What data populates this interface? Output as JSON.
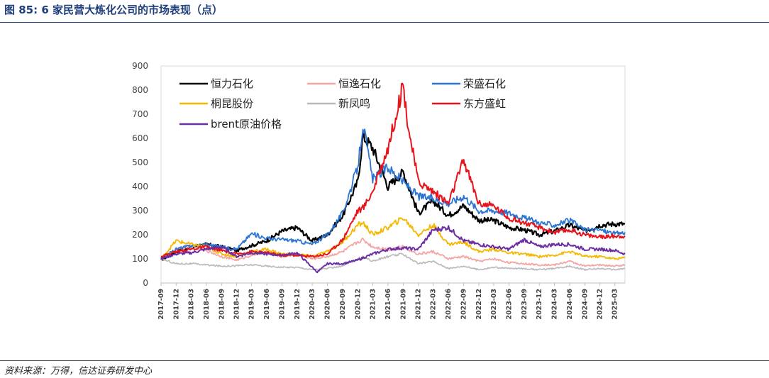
{
  "figure": {
    "title": "图 85:  6 家民营大炼化公司的市场表现（点）",
    "source": "资料来源：万得，信达证券研发中心"
  },
  "chart_data": {
    "type": "line",
    "ylim": [
      0,
      900
    ],
    "yticks": [
      0,
      100,
      200,
      300,
      400,
      500,
      600,
      700,
      800,
      900
    ],
    "xticks": [
      "2017-09",
      "2017-12",
      "2018-03",
      "2018-06",
      "2018-09",
      "2018-12",
      "2019-03",
      "2019-06",
      "2019-09",
      "2019-12",
      "2020-03",
      "2020-06",
      "2020-09",
      "2020-12",
      "2021-03",
      "2021-06",
      "2021-09",
      "2021-12",
      "2022-03",
      "2022-06",
      "2022-09",
      "2022-12",
      "2023-03",
      "2023-06",
      "2023-09",
      "2023-12",
      "2024-03",
      "2024-06",
      "2024-09",
      "2024-12",
      "2025-03"
    ],
    "grid": false,
    "legend_position": "top-left",
    "series": [
      {
        "name": "恒力石化",
        "color": "#000000",
        "width": 2.2,
        "x": [
          "2017-09",
          "2017-12",
          "2018-03",
          "2018-06",
          "2018-09",
          "2018-12",
          "2019-03",
          "2019-06",
          "2019-09",
          "2019-12",
          "2020-03",
          "2020-06",
          "2020-09",
          "2020-12",
          "2021-01",
          "2021-03",
          "2021-06",
          "2021-09",
          "2021-12",
          "2022-03",
          "2022-06",
          "2022-09",
          "2022-12",
          "2023-03",
          "2023-06",
          "2023-09",
          "2023-12",
          "2024-03",
          "2024-06",
          "2024-09",
          "2024-12",
          "2025-03",
          "2025-05"
        ],
        "values": [
          95,
          130,
          150,
          160,
          150,
          135,
          155,
          175,
          215,
          230,
          175,
          200,
          280,
          420,
          610,
          560,
          400,
          460,
          290,
          340,
          280,
          320,
          260,
          260,
          230,
          220,
          200,
          215,
          240,
          215,
          240,
          245,
          245
        ]
      },
      {
        "name": "恒逸石化",
        "color": "#f4a6a6",
        "width": 1.8,
        "x": [
          "2017-09",
          "2017-12",
          "2018-03",
          "2018-06",
          "2018-09",
          "2018-12",
          "2019-03",
          "2019-06",
          "2019-09",
          "2019-12",
          "2020-03",
          "2020-06",
          "2020-09",
          "2020-12",
          "2021-01",
          "2021-03",
          "2021-06",
          "2021-09",
          "2021-12",
          "2022-03",
          "2022-06",
          "2022-09",
          "2022-12",
          "2023-03",
          "2023-06",
          "2023-09",
          "2023-12",
          "2024-03",
          "2024-06",
          "2024-09",
          "2024-12",
          "2025-03",
          "2025-05"
        ],
        "values": [
          100,
          140,
          150,
          135,
          110,
          95,
          115,
          130,
          110,
          120,
          100,
          110,
          130,
          170,
          180,
          150,
          140,
          150,
          120,
          130,
          100,
          110,
          90,
          100,
          85,
          80,
          75,
          75,
          90,
          70,
          75,
          70,
          75
        ]
      },
      {
        "name": "荣盛石化",
        "color": "#2a74d4",
        "width": 1.8,
        "x": [
          "2017-09",
          "2017-12",
          "2018-03",
          "2018-06",
          "2018-09",
          "2018-12",
          "2019-03",
          "2019-06",
          "2019-09",
          "2019-12",
          "2020-03",
          "2020-06",
          "2020-09",
          "2020-12",
          "2021-01",
          "2021-03",
          "2021-06",
          "2021-09",
          "2021-12",
          "2022-03",
          "2022-06",
          "2022-09",
          "2022-12",
          "2023-03",
          "2023-06",
          "2023-09",
          "2023-12",
          "2024-03",
          "2024-06",
          "2024-09",
          "2024-12",
          "2025-03",
          "2025-05"
        ],
        "values": [
          100,
          140,
          155,
          160,
          150,
          140,
          205,
          185,
          180,
          175,
          160,
          200,
          290,
          480,
          660,
          430,
          480,
          420,
          360,
          350,
          330,
          360,
          300,
          300,
          290,
          270,
          250,
          240,
          260,
          220,
          220,
          205,
          210
        ]
      },
      {
        "name": "桐昆股份",
        "color": "#f5b800",
        "width": 1.8,
        "x": [
          "2017-09",
          "2017-12",
          "2018-03",
          "2018-06",
          "2018-09",
          "2018-12",
          "2019-03",
          "2019-06",
          "2019-09",
          "2019-12",
          "2020-03",
          "2020-06",
          "2020-09",
          "2020-12",
          "2021-01",
          "2021-03",
          "2021-06",
          "2021-09",
          "2021-12",
          "2022-03",
          "2022-06",
          "2022-09",
          "2022-12",
          "2023-03",
          "2023-06",
          "2023-09",
          "2023-12",
          "2024-03",
          "2024-06",
          "2024-09",
          "2024-12",
          "2025-03",
          "2025-05"
        ],
        "values": [
          100,
          175,
          160,
          150,
          120,
          110,
          130,
          140,
          120,
          120,
          110,
          130,
          170,
          240,
          250,
          200,
          230,
          270,
          200,
          240,
          160,
          170,
          130,
          140,
          125,
          120,
          110,
          115,
          130,
          110,
          110,
          100,
          105
        ]
      },
      {
        "name": "新凤鸣",
        "color": "#b9b9b9",
        "width": 1.6,
        "x": [
          "2017-09",
          "2017-12",
          "2018-03",
          "2018-06",
          "2018-09",
          "2018-12",
          "2019-03",
          "2019-06",
          "2019-09",
          "2019-12",
          "2020-03",
          "2020-06",
          "2020-09",
          "2020-12",
          "2021-01",
          "2021-03",
          "2021-06",
          "2021-09",
          "2021-12",
          "2022-03",
          "2022-06",
          "2022-09",
          "2022-12",
          "2023-03",
          "2023-06",
          "2023-09",
          "2023-12",
          "2024-03",
          "2024-06",
          "2024-09",
          "2024-12",
          "2025-03",
          "2025-05"
        ],
        "values": [
          100,
          80,
          80,
          75,
          70,
          72,
          75,
          70,
          65,
          65,
          55,
          60,
          70,
          100,
          110,
          90,
          110,
          120,
          80,
          90,
          60,
          70,
          55,
          65,
          60,
          60,
          55,
          60,
          70,
          55,
          60,
          55,
          60
        ]
      },
      {
        "name": "东方盛虹",
        "color": "#e8141c",
        "width": 2.0,
        "x": [
          "2017-09",
          "2017-12",
          "2018-03",
          "2018-06",
          "2018-09",
          "2018-12",
          "2019-03",
          "2019-06",
          "2019-09",
          "2019-12",
          "2020-03",
          "2020-06",
          "2020-09",
          "2020-12",
          "2021-01",
          "2021-03",
          "2021-06",
          "2021-09",
          "2021-10",
          "2021-12",
          "2022-03",
          "2022-06",
          "2022-09",
          "2022-12",
          "2023-03",
          "2023-06",
          "2023-09",
          "2023-12",
          "2024-03",
          "2024-06",
          "2024-09",
          "2024-12",
          "2025-03",
          "2025-05"
        ],
        "values": [
          110,
          130,
          140,
          150,
          135,
          120,
          130,
          125,
          115,
          115,
          110,
          120,
          180,
          300,
          310,
          380,
          560,
          820,
          650,
          420,
          380,
          330,
          510,
          330,
          320,
          270,
          250,
          230,
          210,
          220,
          200,
          190,
          195,
          195
        ]
      },
      {
        "name": "brent原油价格",
        "color": "#6a2fa3",
        "width": 2.0,
        "x": [
          "2017-09",
          "2017-12",
          "2018-03",
          "2018-06",
          "2018-09",
          "2018-12",
          "2019-03",
          "2019-06",
          "2019-09",
          "2019-12",
          "2020-03",
          "2020-04",
          "2020-06",
          "2020-09",
          "2020-12",
          "2021-03",
          "2021-06",
          "2021-09",
          "2021-12",
          "2022-03",
          "2022-06",
          "2022-09",
          "2022-12",
          "2023-03",
          "2023-06",
          "2023-09",
          "2023-12",
          "2024-03",
          "2024-06",
          "2024-09",
          "2024-12",
          "2025-03",
          "2025-05"
        ],
        "values": [
          100,
          120,
          125,
          140,
          150,
          110,
          125,
          120,
          115,
          125,
          65,
          45,
          80,
          80,
          95,
          120,
          140,
          145,
          140,
          220,
          230,
          175,
          160,
          150,
          140,
          180,
          150,
          160,
          160,
          140,
          140,
          135,
          120
        ]
      }
    ]
  }
}
